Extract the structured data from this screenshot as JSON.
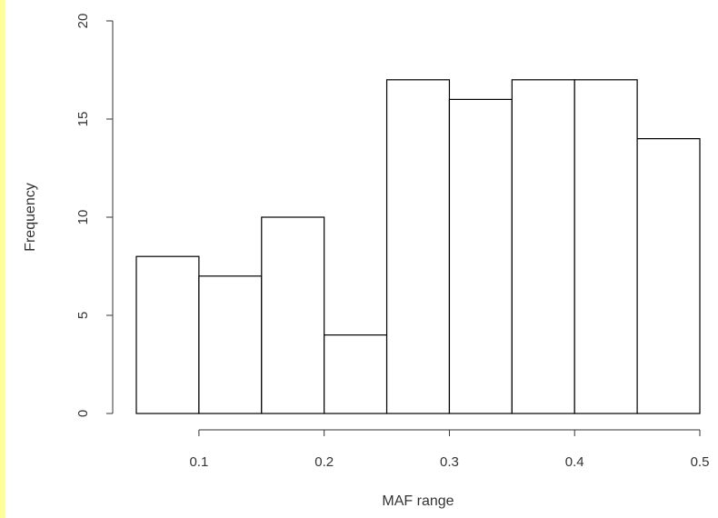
{
  "colors": {
    "left_strip": "#ffff99",
    "bar_fill": "#ffffff",
    "bar_stroke": "#000000",
    "axis": "#333333"
  },
  "chart_data": {
    "type": "bar",
    "title": "",
    "xlabel": "MAF range",
    "ylabel": "Frequency",
    "bin_edges": [
      0.05,
      0.1,
      0.15,
      0.2,
      0.25,
      0.3,
      0.35,
      0.4,
      0.45,
      0.5
    ],
    "values": [
      8,
      7,
      10,
      4,
      17,
      16,
      17,
      17,
      14
    ],
    "xlim": [
      0.05,
      0.5
    ],
    "ylim": [
      0,
      20
    ],
    "x_ticks": [
      0.1,
      0.2,
      0.3,
      0.4,
      0.5
    ],
    "x_tick_labels": [
      "0.1",
      "0.2",
      "0.3",
      "0.4",
      "0.5"
    ],
    "y_ticks": [
      0,
      5,
      10,
      15,
      20
    ],
    "y_tick_labels": [
      "0",
      "5",
      "10",
      "15",
      "20"
    ],
    "grid": false,
    "legend": "none"
  }
}
